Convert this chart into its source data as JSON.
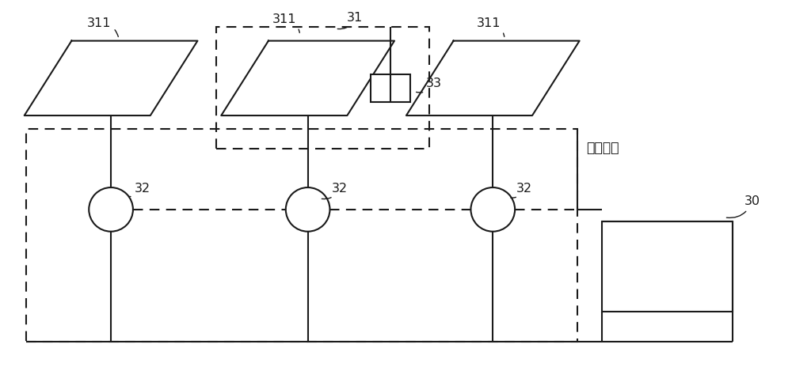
{
  "bg_color": "#ffffff",
  "line_color": "#1a1a1a",
  "lw": 1.5,
  "dlw": 1.5,
  "figsize": [
    10.0,
    4.83
  ],
  "dpi": 100,
  "label_fenliuxtong": "分流系统",
  "ref30": "30",
  "ref31": "31",
  "ref32": "32",
  "ref33": "33",
  "ref311": "311",
  "fs": 11.5,
  "dash_on": 6,
  "dash_off": 4
}
